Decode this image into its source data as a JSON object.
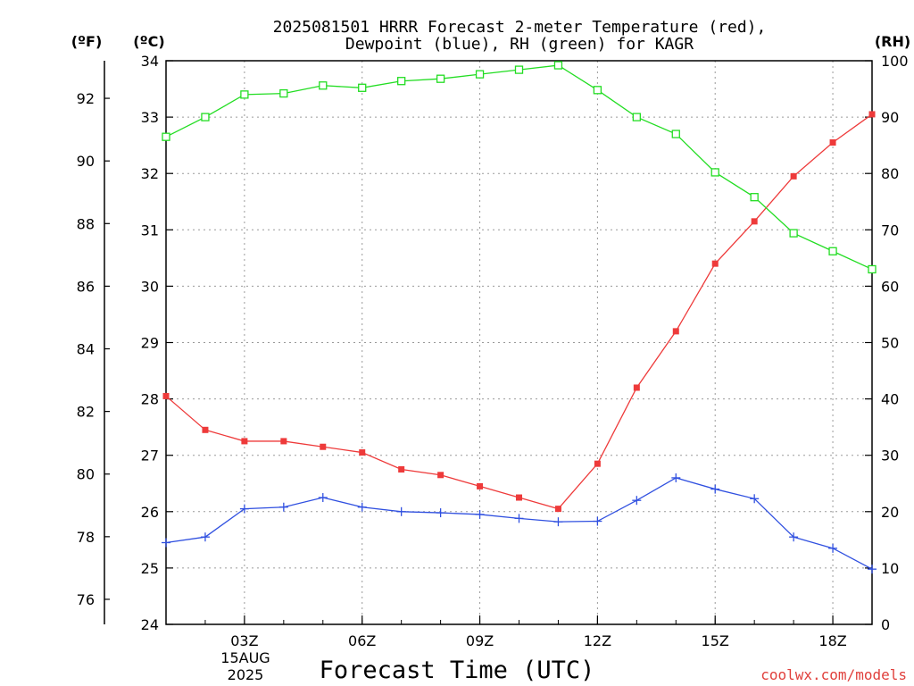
{
  "chart_data": {
    "type": "line",
    "title": [
      "2025081501 HRRR Forecast 2-meter Temperature (red),",
      "Dewpoint (blue), RH (green) for KAGR"
    ],
    "xlabel": "Forecast Time (UTC)",
    "x_hours": [
      1,
      2,
      3,
      4,
      5,
      6,
      7,
      8,
      9,
      10,
      11,
      12,
      13,
      14,
      15,
      16,
      17,
      18,
      19
    ],
    "x_ticks": [
      {
        "hour": 3,
        "label": "03Z"
      },
      {
        "hour": 6,
        "label": "06Z"
      },
      {
        "hour": 9,
        "label": "09Z"
      },
      {
        "hour": 12,
        "label": "12Z"
      },
      {
        "hour": 15,
        "label": "15Z"
      },
      {
        "hour": 18,
        "label": "18Z"
      }
    ],
    "date_label": [
      "15AUG",
      "2025"
    ],
    "xlim": [
      1,
      19
    ],
    "grid": true,
    "axes": {
      "celsius": {
        "unit_label": "(ºC)",
        "range": [
          24,
          34
        ],
        "ticks": [
          24,
          25,
          26,
          27,
          28,
          29,
          30,
          31,
          32,
          33,
          34
        ]
      },
      "fahrenheit": {
        "unit_label": "(ºF)",
        "range": [
          75.2,
          93.2
        ],
        "ticks": [
          76,
          78,
          80,
          82,
          84,
          86,
          88,
          90,
          92
        ]
      },
      "rh": {
        "unit_label": "(RH)",
        "range": [
          0,
          100
        ],
        "ticks": [
          0,
          10,
          20,
          30,
          40,
          50,
          60,
          70,
          80,
          90,
          100
        ]
      }
    },
    "series": [
      {
        "name": "Temperature",
        "axis": "celsius",
        "color": "#ee3a3a",
        "marker": "filled-square",
        "values": [
          28.05,
          27.45,
          27.25,
          27.25,
          27.15,
          27.05,
          26.75,
          26.65,
          26.45,
          26.25,
          26.05,
          26.85,
          28.2,
          29.2,
          30.4,
          31.15,
          31.95,
          32.55,
          33.05
        ]
      },
      {
        "name": "Dewpoint",
        "axis": "celsius",
        "color": "#3050e0",
        "marker": "plus",
        "values": [
          25.45,
          25.55,
          26.05,
          26.08,
          26.25,
          26.08,
          26.0,
          25.98,
          25.95,
          25.88,
          25.82,
          25.83,
          26.2,
          26.6,
          26.4,
          26.23,
          25.55,
          25.35,
          24.98
        ]
      },
      {
        "name": "RH",
        "axis": "rh",
        "color": "#22dd22",
        "marker": "open-square",
        "values": [
          86.5,
          90,
          94,
          94.2,
          95.6,
          95.2,
          96.4,
          96.8,
          97.6,
          98.4,
          99.2,
          94.8,
          90,
          87,
          80.2,
          75.8,
          69.4,
          66.2,
          63
        ]
      }
    ]
  },
  "watermark": "coolwx.com/models"
}
